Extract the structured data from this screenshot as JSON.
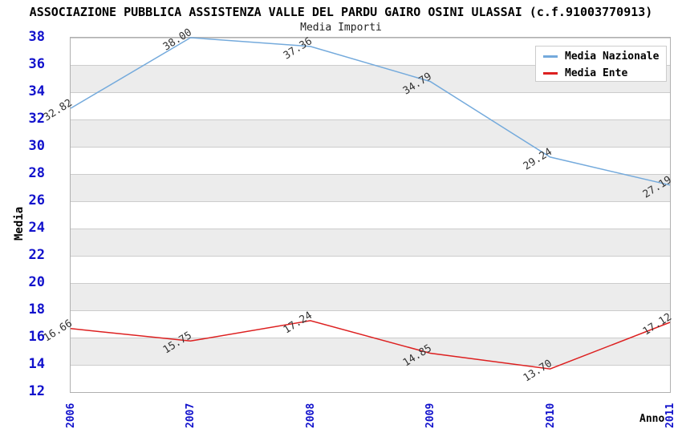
{
  "header": {
    "title": "ASSOCIAZIONE PUBBLICA ASSISTENZA VALLE DEL PARDU GAIRO OSINI ULASSAI (c.f.91003770913)",
    "subtitle": "Media Importi"
  },
  "chart_data": {
    "type": "line",
    "title": "Media Importi",
    "xlabel": "Anno",
    "ylabel": "Media",
    "x": [
      "2006",
      "2007",
      "2008",
      "2009",
      "2010",
      "2011"
    ],
    "ylim": [
      12,
      38
    ],
    "yticks": [
      38,
      36,
      34,
      32,
      30,
      28,
      26,
      24,
      22,
      20,
      18,
      16,
      14,
      12
    ],
    "grid": "horizontal gridlines every 2 units with alternating white/gray bands",
    "legend_position": "top-right",
    "point_labels_shown": true,
    "series": [
      {
        "name": "Media Nazionale",
        "color": "#74aadc",
        "values": [
          32.82,
          38.0,
          37.36,
          34.79,
          29.24,
          27.19
        ],
        "labels": [
          "32.82",
          "38.00",
          "37.36",
          "34.79",
          "29.24",
          "27.19"
        ]
      },
      {
        "name": "Media Ente",
        "color": "#dd2020",
        "values": [
          16.66,
          15.75,
          17.24,
          14.85,
          13.7,
          17.12
        ],
        "labels": [
          "16.66",
          "15.75",
          "17.24",
          "14.85",
          "13.70",
          "17.12"
        ]
      }
    ]
  },
  "colors": {
    "tick_label": "#1111cc",
    "band": "#ececec",
    "gridline": "#cccccc",
    "spine": "#b0b0b0",
    "data_label": "#333333",
    "background": "#ffffff"
  }
}
